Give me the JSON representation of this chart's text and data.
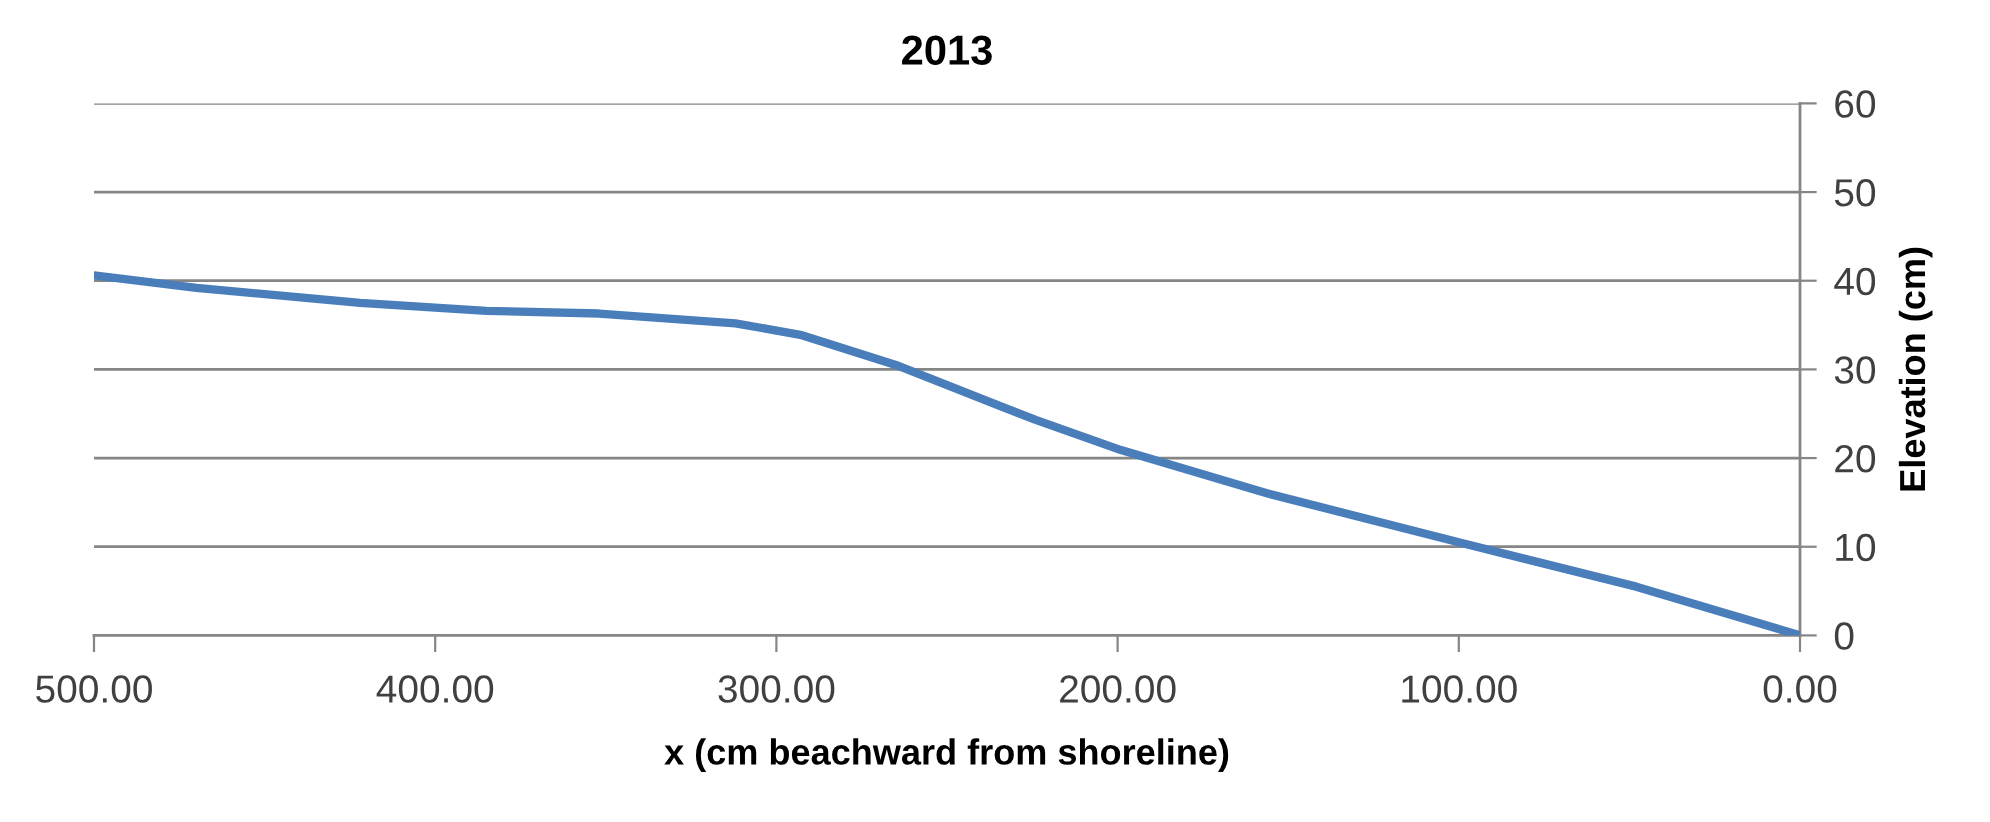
{
  "chart_data": {
    "type": "line",
    "title": "2013",
    "xlabel": "x (cm beachward from shoreline)",
    "ylabel": "Elevation (cm)",
    "x": [
      500,
      470,
      422,
      385,
      352,
      312,
      293,
      265,
      234,
      224,
      199,
      156,
      98,
      48,
      0
    ],
    "series": [
      {
        "color": "#4a7ebb",
        "values": [
          40.6,
          39.2,
          37.5,
          36.6,
          36.3,
          35.2,
          33.9,
          30.5,
          25.8,
          24.3,
          20.9,
          16.0,
          10.3,
          5.5,
          0
        ]
      }
    ],
    "xlim": [
      500,
      0
    ],
    "ylim": [
      0,
      60
    ],
    "xticks": [
      {
        "value": 500,
        "label": "500.00"
      },
      {
        "value": 400,
        "label": "400.00"
      },
      {
        "value": 300,
        "label": "300.00"
      },
      {
        "value": 200,
        "label": "200.00"
      },
      {
        "value": 100,
        "label": "100.00"
      },
      {
        "value": 0,
        "label": "0.00"
      }
    ],
    "yticks": [
      0,
      10,
      20,
      30,
      40,
      50,
      60
    ],
    "grid": "y"
  }
}
